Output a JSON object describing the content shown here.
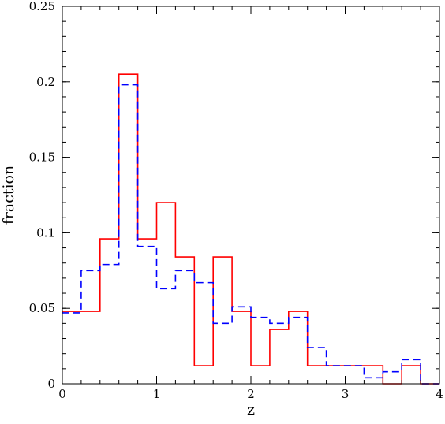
{
  "chart_data": {
    "type": "histogram-step",
    "xlabel": "z",
    "ylabel": "fraction",
    "xlim": [
      0,
      4
    ],
    "ylim": [
      0,
      0.25
    ],
    "x_ticks": [
      {
        "value": 0,
        "label": "0"
      },
      {
        "value": 1,
        "label": "1"
      },
      {
        "value": 2,
        "label": "2"
      },
      {
        "value": 3,
        "label": "3"
      },
      {
        "value": 4,
        "label": "4"
      }
    ],
    "y_ticks": [
      {
        "value": 0,
        "label": "0"
      },
      {
        "value": 0.05,
        "label": "0.05"
      },
      {
        "value": 0.1,
        "label": "0.1"
      },
      {
        "value": 0.15,
        "label": "0.15"
      },
      {
        "value": 0.2,
        "label": "0.2"
      },
      {
        "value": 0.25,
        "label": "0.25"
      }
    ],
    "x_minor_step": 0.2,
    "y_minor_step": 0.01,
    "grid": false,
    "series": [
      {
        "color": "#ff0000",
        "line_style": "solid",
        "bin_edges": [
          0,
          0.4,
          0.6,
          0.8,
          1.0,
          1.2,
          1.4,
          1.6,
          1.8,
          2.0,
          2.2,
          2.4,
          2.6,
          3.4,
          3.6,
          3.8,
          4.0
        ],
        "values": [
          0.048,
          0.096,
          0.205,
          0.096,
          0.12,
          0.084,
          0.012,
          0.084,
          0.048,
          0.012,
          0.036,
          0.048,
          0.012,
          0.0,
          0.012,
          0.0
        ]
      },
      {
        "color": "#0000ff",
        "line_style": "dashed",
        "bin_edges": [
          0,
          0.2,
          0.4,
          0.6,
          0.8,
          1.0,
          1.2,
          1.4,
          1.6,
          1.8,
          2.0,
          2.2,
          2.4,
          2.6,
          2.8,
          3.2,
          3.4,
          3.6,
          3.8,
          4.0
        ],
        "values": [
          0.047,
          0.075,
          0.079,
          0.198,
          0.091,
          0.063,
          0.075,
          0.067,
          0.04,
          0.051,
          0.044,
          0.04,
          0.044,
          0.024,
          0.012,
          0.004,
          0.008,
          0.016,
          0.0
        ]
      }
    ]
  }
}
